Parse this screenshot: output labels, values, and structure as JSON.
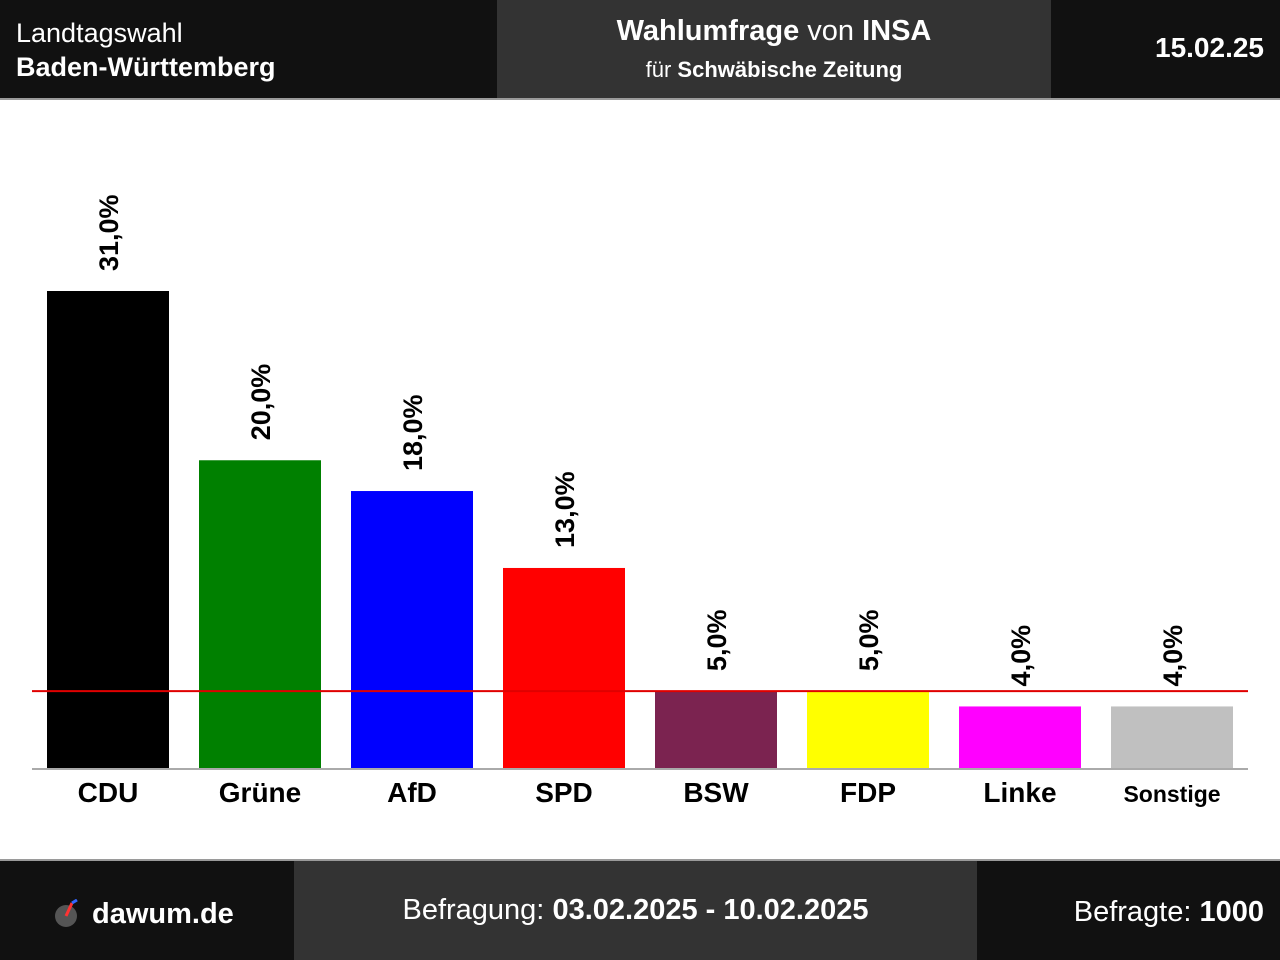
{
  "header": {
    "left_line1": "Landtagswahl",
    "left_line2": "Baden-Württemberg",
    "center_title_bold": "Wahlumfrage",
    "center_title_mid": " von ",
    "center_institute": "INSA",
    "center_sub_prefix": "für ",
    "center_client": "Schwäbische Zeitung",
    "date": "15.02.25"
  },
  "chart_data": {
    "type": "bar",
    "categories": [
      "CDU",
      "Grüne",
      "AfD",
      "SPD",
      "BSW",
      "FDP",
      "Linke",
      "Sonstige"
    ],
    "values": [
      31.0,
      20.0,
      18.0,
      13.0,
      5.0,
      5.0,
      4.0,
      4.0
    ],
    "value_labels": [
      "31,0%",
      "20,0%",
      "18,0%",
      "13,0%",
      "5,0%",
      "5,0%",
      "4,0%",
      "4,0%"
    ],
    "colors": [
      "#000000",
      "#008000",
      "#0000ff",
      "#ff0000",
      "#7b2350",
      "#ffff00",
      "#ff00ff",
      "#c0c0c0"
    ],
    "threshold": 5.0,
    "threshold_color": "#e00000",
    "ylim": [
      0,
      31.0
    ],
    "grid": false,
    "legend": "none",
    "title": "",
    "xlabel": "",
    "ylabel": ""
  },
  "footer": {
    "brand": "dawum.de",
    "survey_label": "Befragung: ",
    "survey_period": "03.02.2025 - 10.02.2025",
    "respondents_label": "Befragte: ",
    "respondents": "1000"
  }
}
